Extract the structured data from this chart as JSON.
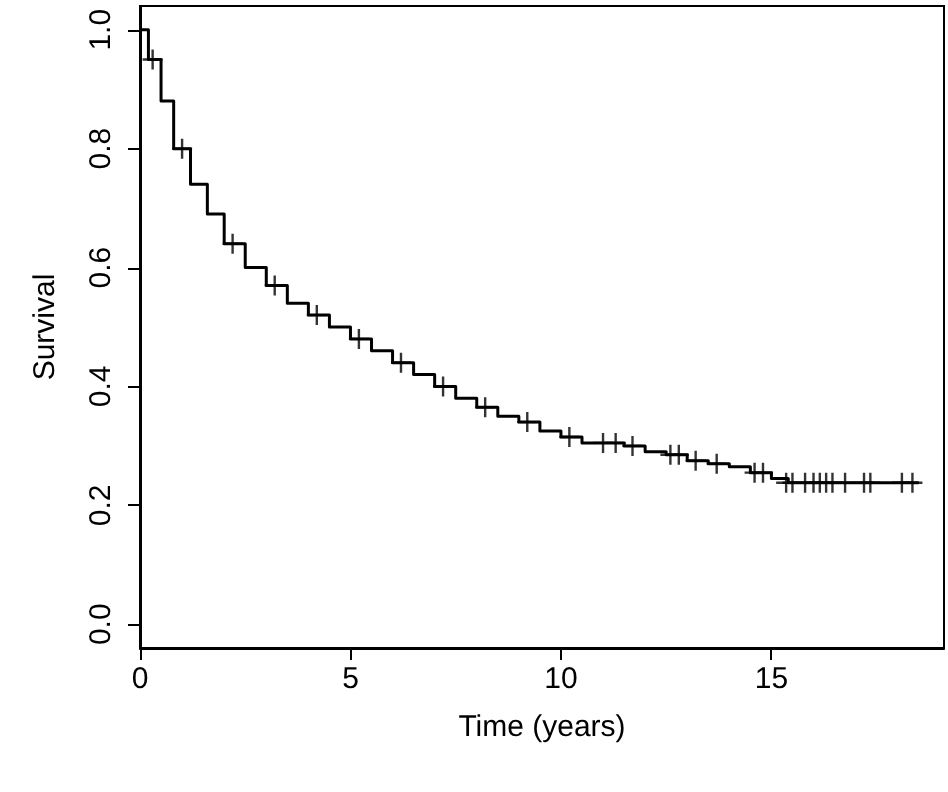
{
  "chart_data": {
    "type": "step",
    "xlabel": "Time (years)",
    "ylabel": "Survival",
    "xlim": [
      0,
      19.1
    ],
    "ylim": [
      -0.04,
      1.04
    ],
    "xticks": [
      0,
      5,
      10,
      15
    ],
    "yticks": [
      {
        "value": 0,
        "label": "0.0"
      },
      {
        "value": 0.2,
        "label": "0.2"
      },
      {
        "value": 0.4,
        "label": "0.4"
      },
      {
        "value": 0.6,
        "label": "0.6"
      },
      {
        "value": 0.8,
        "label": "0.8"
      },
      {
        "value": 1,
        "label": "1.0"
      }
    ],
    "grid": false,
    "series": [
      {
        "color": "#000000",
        "x": [
          0,
          0.2,
          0.5,
          0.8,
          1.2,
          1.6,
          2.0,
          2.5,
          3.0,
          3.5,
          4.0,
          4.5,
          5.0,
          5.5,
          6.0,
          6.5,
          7.0,
          7.5,
          8.0,
          8.5,
          9.0,
          9.5,
          10.0,
          10.5,
          11.5,
          12.0,
          12.5,
          13.0,
          13.5,
          14.0,
          14.5,
          15.0,
          15.4,
          18.5
        ],
        "values": [
          1.0,
          0.95,
          0.88,
          0.8,
          0.74,
          0.69,
          0.64,
          0.6,
          0.57,
          0.54,
          0.52,
          0.5,
          0.48,
          0.46,
          0.44,
          0.42,
          0.4,
          0.38,
          0.365,
          0.35,
          0.34,
          0.325,
          0.315,
          0.305,
          0.3,
          0.29,
          0.285,
          0.275,
          0.27,
          0.265,
          0.255,
          0.245,
          0.238,
          0.238
        ]
      },
      {
        "type": "scatter",
        "marker": "cross",
        "color": "#000000",
        "x": [
          0.3,
          1.0,
          2.2,
          3.2,
          4.2,
          5.2,
          6.2,
          7.2,
          8.2,
          9.2,
          10.2,
          11.0,
          11.3,
          11.7,
          12.6,
          12.8,
          13.2,
          13.7,
          14.6,
          14.8,
          15.35,
          15.5,
          15.8,
          16.0,
          16.15,
          16.3,
          16.45,
          16.75,
          17.2,
          17.35,
          18.1,
          18.35
        ],
        "values": [
          0.95,
          0.8,
          0.64,
          0.57,
          0.52,
          0.48,
          0.44,
          0.4,
          0.365,
          0.34,
          0.315,
          0.305,
          0.305,
          0.3,
          0.285,
          0.285,
          0.275,
          0.27,
          0.255,
          0.255,
          0.238,
          0.238,
          0.238,
          0.238,
          0.238,
          0.238,
          0.238,
          0.238,
          0.238,
          0.238,
          0.238,
          0.238
        ]
      }
    ]
  }
}
